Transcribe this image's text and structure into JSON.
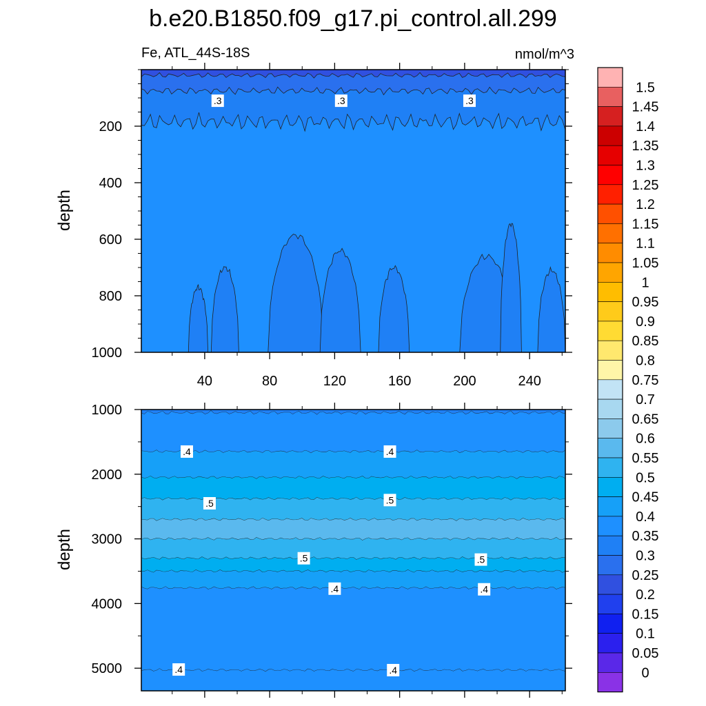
{
  "chart_data": {
    "type": "heatmap",
    "title": "b.e20.B1850.f09_g17.pi_control.all.299",
    "left_subtitle": "Fe, ATL_44S-18S",
    "right_subtitle": "nmol/m^3",
    "ylabel": "depth",
    "x_ticks": [
      "40",
      "80",
      "120",
      "160",
      "200",
      "240"
    ],
    "x_tick_values": [
      40,
      80,
      120,
      160,
      200,
      240
    ],
    "xlim": [
      1,
      262
    ],
    "panels": [
      {
        "name": "upper",
        "ylim": [
          0,
          1000
        ],
        "y_ticks": [
          "200",
          "400",
          "600",
          "800",
          "1000"
        ],
        "y_tick_values": [
          200,
          400,
          600,
          800,
          1000
        ],
        "contour_labels": [
          {
            "text": ".3",
            "x": 48,
            "depth": 110
          },
          {
            "text": ".3",
            "x": 124,
            "depth": 110
          },
          {
            "text": ".3",
            "x": 203,
            "depth": 110
          }
        ]
      },
      {
        "name": "lower",
        "ylim": [
          1000,
          5350
        ],
        "y_ticks": [
          "1000",
          "2000",
          "3000",
          "4000",
          "5000"
        ],
        "y_tick_values": [
          1000,
          2000,
          3000,
          4000,
          5000
        ],
        "contour_labels": [
          {
            "text": ".4",
            "x": 29,
            "depth": 1650
          },
          {
            "text": ".4",
            "x": 154,
            "depth": 1650
          },
          {
            "text": ".5",
            "x": 43,
            "depth": 2450
          },
          {
            "text": ".5",
            "x": 154,
            "depth": 2400
          },
          {
            "text": ".5",
            "x": 101,
            "depth": 3300
          },
          {
            "text": ".5",
            "x": 210,
            "depth": 3320
          },
          {
            "text": ".4",
            "x": 120,
            "depth": 3770
          },
          {
            "text": ".4",
            "x": 212,
            "depth": 3780
          },
          {
            "text": ".4",
            "x": 24,
            "depth": 5020
          },
          {
            "text": ".4",
            "x": 156,
            "depth": 5030
          }
        ]
      }
    ],
    "colorbar": {
      "labels": [
        "1.5",
        "1.45",
        "1.4",
        "1.35",
        "1.3",
        "1.25",
        "1.2",
        "1.15",
        "1.1",
        "1.05",
        "1",
        "0.95",
        "0.9",
        "0.85",
        "0.8",
        "0.75",
        "0.7",
        "0.65",
        "0.6",
        "0.55",
        "0.5",
        "0.45",
        "0.4",
        "0.35",
        "0.3",
        "0.25",
        "0.2",
        "0.15",
        "0.1",
        "0.05",
        "0"
      ],
      "colors": [
        "#ffb3b3",
        "#e86060",
        "#d62020",
        "#cc0000",
        "#e60000",
        "#ff0000",
        "#ff2000",
        "#ff5000",
        "#ff7000",
        "#ff8c00",
        "#ffa500",
        "#ffbd00",
        "#ffcb1a",
        "#ffdb33",
        "#ffe86e",
        "#fff5a8",
        "#c2e3f5",
        "#a8d8f0",
        "#8ccaec",
        "#5ab9ee",
        "#2fb3f0",
        "#00aef0",
        "#16a0f8",
        "#1e90ff",
        "#1f80f5",
        "#2a70ee",
        "#3050e0",
        "#2040ee",
        "#1020f0",
        "#2b20ee",
        "#5a28e8",
        "#8a32e6"
      ]
    }
  }
}
